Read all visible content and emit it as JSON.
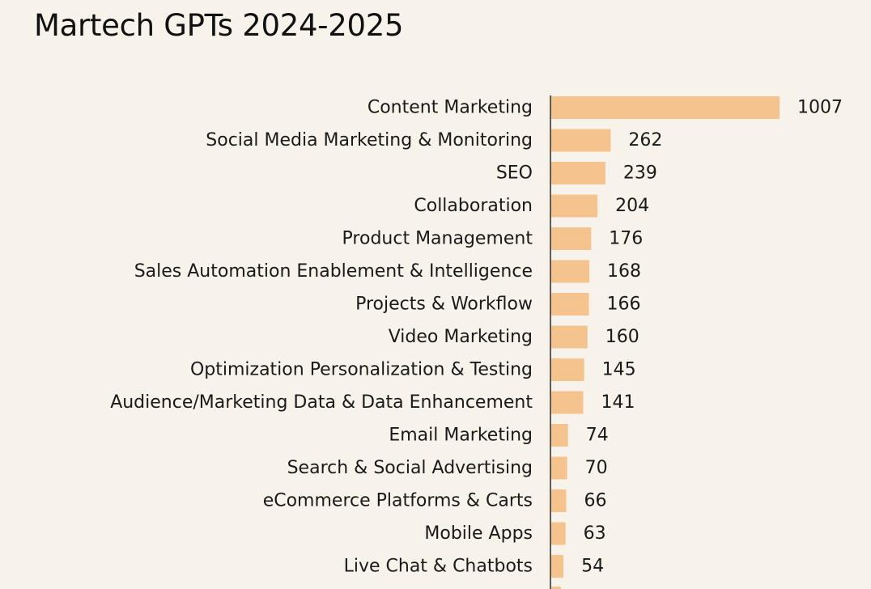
{
  "colors": {
    "background": "#f7f2ea",
    "bar": "#f5c48e",
    "axis": "#2a2a2a",
    "text": "#1a1a1a"
  },
  "chart_data": {
    "type": "bar",
    "orientation": "horizontal",
    "title": "Martech GPTs 2024-2025",
    "xlabel": "",
    "ylabel": "",
    "grid": false,
    "categories": [
      "Content Marketing",
      "Social Media Marketing & Monitoring",
      "SEO",
      "Collaboration",
      "Product Management",
      "Sales Automation Enablement & Intelligence",
      "Projects & Workflow",
      "Video Marketing",
      "Optimization Personalization & Testing",
      "Audience/Marketing Data & Data Enhancement",
      "Email Marketing",
      "Search & Social Advertising",
      "eCommerce Platforms & Carts",
      "Mobile Apps",
      "Live Chat & Chatbots"
    ],
    "values": [
      1007,
      262,
      239,
      204,
      176,
      168,
      166,
      160,
      145,
      141,
      74,
      70,
      66,
      63,
      54
    ],
    "xlim": [
      0,
      1007
    ]
  }
}
